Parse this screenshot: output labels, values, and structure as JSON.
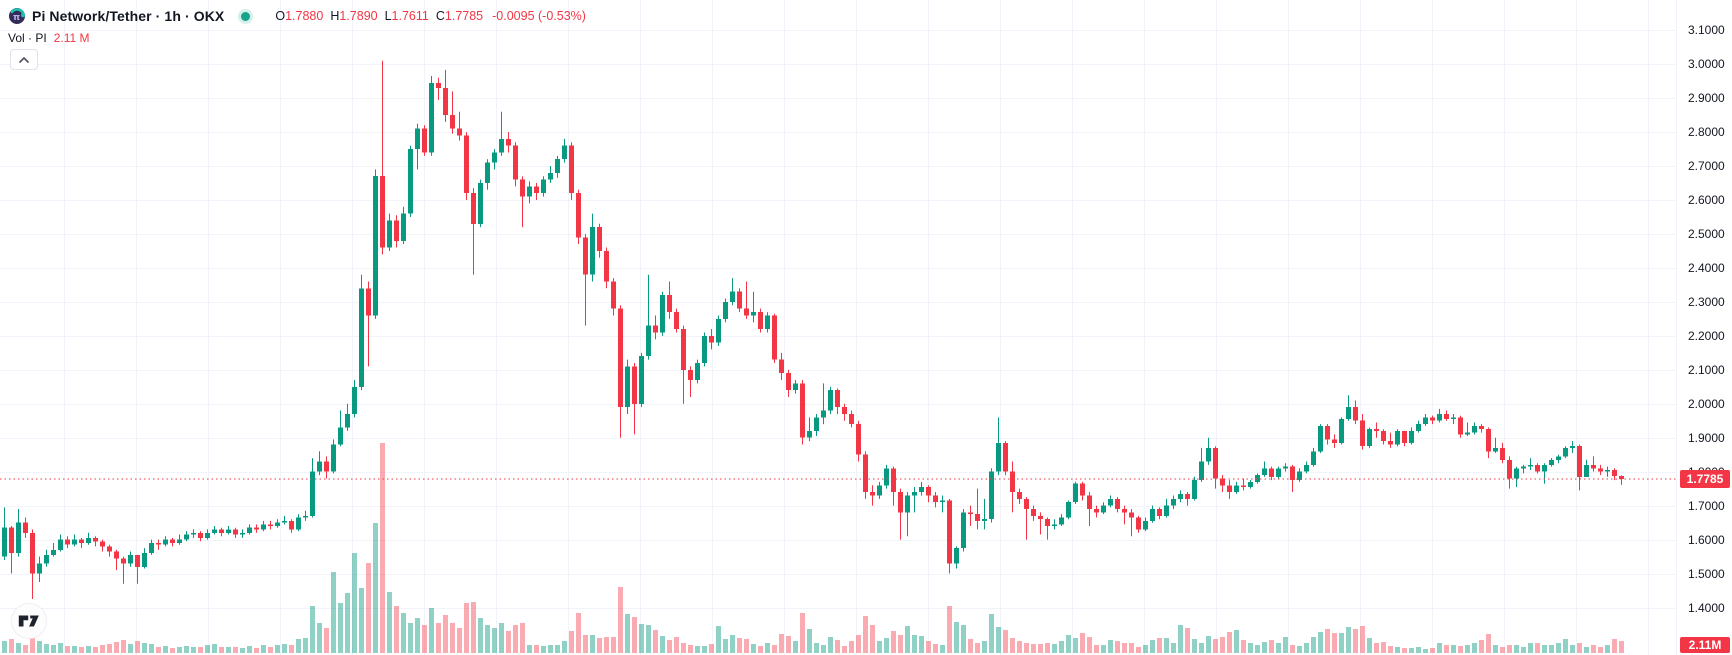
{
  "header": {
    "title": "Pi Network/Tether · 1h · OKX",
    "status_indicator": "market-open",
    "ohlc": [
      {
        "key": "O",
        "value": "1.7880"
      },
      {
        "key": "H",
        "value": "1.7890"
      },
      {
        "key": "L",
        "value": "1.7611"
      },
      {
        "key": "C",
        "value": "1.7785"
      }
    ],
    "change": "-0.0095 (-0.53%)",
    "volume_legend_label": "Vol · PI",
    "volume_legend_value": "2.11 M",
    "collapse_button": "chevron-up"
  },
  "colors": {
    "up": "#089981",
    "down": "#f23645",
    "vol_up": "rgba(8,153,129,0.45)",
    "vol_down": "rgba(242,54,69,0.42)",
    "grid": "#f0f3fa",
    "text": "#131722",
    "price_line": "#f23645"
  },
  "axis": {
    "y_ticks": [
      "3.1000",
      "3.0000",
      "2.9000",
      "2.8000",
      "2.7000",
      "2.6000",
      "2.5000",
      "2.4000",
      "2.3000",
      "2.2000",
      "2.1000",
      "2.0000",
      "1.9000",
      "1.8000",
      "1.7000",
      "1.6000",
      "1.5000",
      "1.4000"
    ],
    "y_tick_values": [
      3.1,
      3.0,
      2.9,
      2.8,
      2.7,
      2.6,
      2.5,
      2.4,
      2.3,
      2.2,
      2.1,
      2.0,
      1.9,
      1.8,
      1.7,
      1.6,
      1.5,
      1.4
    ],
    "current_price_label": "1.7785",
    "current_volume_label": "2.11M"
  },
  "chart_data": {
    "type": "candlestick",
    "title": "Pi Network/Tether · 1h · OKX",
    "interval": "1h",
    "legend_position": "top-left",
    "grid": true,
    "ylim": [
      1.36,
      3.18
    ],
    "price_line_value": 1.7785,
    "last_candle": {
      "open": 1.788,
      "high": 1.789,
      "low": 1.7611,
      "close": 1.7785,
      "volume_label": "2.11M"
    },
    "first_open": 1.55,
    "candles_format": [
      "close",
      "high",
      "low",
      "volume_rel"
    ],
    "candles": [
      [
        1.635,
        1.695,
        1.54,
        12
      ],
      [
        1.56,
        1.64,
        1.5,
        14
      ],
      [
        1.65,
        1.69,
        1.55,
        10
      ],
      [
        1.62,
        1.665,
        1.605,
        8
      ],
      [
        1.5,
        1.63,
        1.425,
        16
      ],
      [
        1.53,
        1.55,
        1.475,
        12
      ],
      [
        1.555,
        1.57,
        1.52,
        9
      ],
      [
        1.57,
        1.59,
        1.55,
        8
      ],
      [
        1.6,
        1.615,
        1.565,
        10
      ],
      [
        1.585,
        1.61,
        1.575,
        7
      ],
      [
        1.6,
        1.615,
        1.58,
        7
      ],
      [
        1.59,
        1.605,
        1.575,
        6
      ],
      [
        1.605,
        1.62,
        1.585,
        7
      ],
      [
        1.595,
        1.61,
        1.58,
        6
      ],
      [
        1.58,
        1.6,
        1.565,
        8
      ],
      [
        1.565,
        1.585,
        1.55,
        9
      ],
      [
        1.545,
        1.57,
        1.51,
        11
      ],
      [
        1.53,
        1.55,
        1.47,
        13
      ],
      [
        1.555,
        1.565,
        1.52,
        9
      ],
      [
        1.52,
        1.555,
        1.47,
        12
      ],
      [
        1.56,
        1.575,
        1.515,
        10
      ],
      [
        1.59,
        1.6,
        1.555,
        9
      ],
      [
        1.585,
        1.6,
        1.57,
        6
      ],
      [
        1.6,
        1.61,
        1.58,
        7
      ],
      [
        1.59,
        1.605,
        1.58,
        5
      ],
      [
        1.6,
        1.615,
        1.585,
        6
      ],
      [
        1.615,
        1.625,
        1.595,
        7
      ],
      [
        1.62,
        1.63,
        1.605,
        6
      ],
      [
        1.605,
        1.625,
        1.595,
        6
      ],
      [
        1.62,
        1.63,
        1.6,
        8
      ],
      [
        1.63,
        1.64,
        1.615,
        9
      ],
      [
        1.62,
        1.635,
        1.61,
        6
      ],
      [
        1.63,
        1.64,
        1.615,
        6
      ],
      [
        1.615,
        1.635,
        1.605,
        6
      ],
      [
        1.62,
        1.63,
        1.605,
        5
      ],
      [
        1.635,
        1.645,
        1.615,
        7
      ],
      [
        1.63,
        1.645,
        1.62,
        5
      ],
      [
        1.645,
        1.655,
        1.625,
        8
      ],
      [
        1.64,
        1.655,
        1.63,
        6
      ],
      [
        1.65,
        1.66,
        1.635,
        8
      ],
      [
        1.655,
        1.67,
        1.645,
        9
      ],
      [
        1.63,
        1.66,
        1.62,
        8
      ],
      [
        1.665,
        1.675,
        1.625,
        14
      ],
      [
        1.67,
        1.685,
        1.655,
        15
      ],
      [
        1.8,
        1.84,
        1.665,
        47
      ],
      [
        1.83,
        1.86,
        1.79,
        30
      ],
      [
        1.8,
        1.845,
        1.78,
        25
      ],
      [
        1.88,
        1.895,
        1.795,
        81
      ],
      [
        1.93,
        1.98,
        1.875,
        50
      ],
      [
        1.97,
        2.0,
        1.92,
        60
      ],
      [
        2.05,
        2.07,
        1.96,
        100
      ],
      [
        2.34,
        2.38,
        2.04,
        65
      ],
      [
        2.26,
        2.36,
        2.11,
        90
      ],
      [
        2.67,
        2.69,
        2.25,
        130
      ],
      [
        2.46,
        3.01,
        2.44,
        210
      ],
      [
        2.54,
        2.56,
        2.45,
        61
      ],
      [
        2.48,
        2.555,
        2.46,
        47
      ],
      [
        2.56,
        2.58,
        2.47,
        40
      ],
      [
        2.75,
        2.76,
        2.55,
        30
      ],
      [
        2.81,
        2.825,
        2.69,
        35
      ],
      [
        2.74,
        2.82,
        2.73,
        28
      ],
      [
        2.944,
        2.965,
        2.73,
        45
      ],
      [
        2.93,
        2.96,
        2.895,
        30
      ],
      [
        2.85,
        2.983,
        2.83,
        38
      ],
      [
        2.81,
        2.92,
        2.795,
        30
      ],
      [
        2.79,
        2.86,
        2.775,
        25
      ],
      [
        2.62,
        2.8,
        2.6,
        50
      ],
      [
        2.53,
        2.635,
        2.38,
        51
      ],
      [
        2.65,
        2.66,
        2.52,
        35
      ],
      [
        2.71,
        2.72,
        2.63,
        28
      ],
      [
        2.74,
        2.75,
        2.69,
        25
      ],
      [
        2.78,
        2.86,
        2.73,
        30
      ],
      [
        2.76,
        2.8,
        2.74,
        22
      ],
      [
        2.66,
        2.77,
        2.64,
        28
      ],
      [
        2.61,
        2.67,
        2.52,
        30
      ],
      [
        2.64,
        2.655,
        2.59,
        8
      ],
      [
        2.62,
        2.65,
        2.6,
        8
      ],
      [
        2.66,
        2.67,
        2.61,
        7
      ],
      [
        2.68,
        2.7,
        2.65,
        8
      ],
      [
        2.72,
        2.73,
        2.665,
        8
      ],
      [
        2.76,
        2.78,
        2.71,
        12
      ],
      [
        2.62,
        2.77,
        2.6,
        22
      ],
      [
        2.49,
        2.63,
        2.47,
        40
      ],
      [
        2.38,
        2.5,
        2.23,
        18
      ],
      [
        2.52,
        2.56,
        2.36,
        18
      ],
      [
        2.45,
        2.53,
        2.43,
        15
      ],
      [
        2.36,
        2.46,
        2.34,
        16
      ],
      [
        2.28,
        2.37,
        2.26,
        16
      ],
      [
        1.99,
        2.29,
        1.9,
        66
      ],
      [
        2.11,
        2.13,
        1.97,
        39
      ],
      [
        2.0,
        2.12,
        1.91,
        36
      ],
      [
        2.14,
        2.15,
        1.99,
        29
      ],
      [
        2.23,
        2.38,
        2.13,
        28
      ],
      [
        2.21,
        2.26,
        2.19,
        23
      ],
      [
        2.32,
        2.33,
        2.2,
        17
      ],
      [
        2.27,
        2.36,
        2.25,
        13
      ],
      [
        2.22,
        2.28,
        2.21,
        16
      ],
      [
        2.1,
        2.23,
        2.0,
        10
      ],
      [
        2.07,
        2.11,
        2.02,
        8
      ],
      [
        2.12,
        2.13,
        2.06,
        7
      ],
      [
        2.2,
        2.21,
        2.11,
        7
      ],
      [
        2.18,
        2.22,
        2.16,
        9
      ],
      [
        2.25,
        2.26,
        2.17,
        27
      ],
      [
        2.3,
        2.31,
        2.24,
        14
      ],
      [
        2.33,
        2.37,
        2.29,
        18
      ],
      [
        2.28,
        2.34,
        2.27,
        15
      ],
      [
        2.26,
        2.36,
        2.25,
        14
      ],
      [
        2.27,
        2.33,
        2.24,
        9
      ],
      [
        2.22,
        2.28,
        2.21,
        7
      ],
      [
        2.26,
        2.27,
        2.21,
        10
      ],
      [
        2.13,
        2.265,
        2.12,
        8
      ],
      [
        2.09,
        2.15,
        2.07,
        19
      ],
      [
        2.04,
        2.1,
        2.02,
        17
      ],
      [
        2.06,
        2.07,
        2.03,
        12
      ],
      [
        1.9,
        2.07,
        1.88,
        40
      ],
      [
        1.92,
        1.96,
        1.89,
        24
      ],
      [
        1.96,
        1.97,
        1.905,
        10
      ],
      [
        1.98,
        2.06,
        1.94,
        8
      ],
      [
        2.04,
        2.05,
        1.97,
        16
      ],
      [
        1.99,
        2.045,
        1.97,
        13
      ],
      [
        1.97,
        2.0,
        1.95,
        7
      ],
      [
        1.94,
        1.98,
        1.93,
        12
      ],
      [
        1.85,
        1.95,
        1.83,
        18
      ],
      [
        1.74,
        1.86,
        1.72,
        37
      ],
      [
        1.73,
        1.76,
        1.7,
        28
      ],
      [
        1.76,
        1.77,
        1.72,
        12
      ],
      [
        1.81,
        1.82,
        1.75,
        15
      ],
      [
        1.74,
        1.815,
        1.7,
        22
      ],
      [
        1.68,
        1.75,
        1.6,
        18
      ],
      [
        1.73,
        1.74,
        1.61,
        27
      ],
      [
        1.74,
        1.755,
        1.68,
        18
      ],
      [
        1.755,
        1.77,
        1.73,
        17
      ],
      [
        1.73,
        1.76,
        1.71,
        12
      ],
      [
        1.71,
        1.74,
        1.695,
        9
      ],
      [
        1.715,
        1.73,
        1.68,
        8
      ],
      [
        1.53,
        1.72,
        1.5,
        47
      ],
      [
        1.575,
        1.58,
        1.515,
        31
      ],
      [
        1.68,
        1.69,
        1.565,
        28
      ],
      [
        1.675,
        1.7,
        1.64,
        14
      ],
      [
        1.655,
        1.75,
        1.63,
        10
      ],
      [
        1.66,
        1.72,
        1.63,
        12
      ],
      [
        1.8,
        1.81,
        1.65,
        39
      ],
      [
        1.885,
        1.96,
        1.79,
        26
      ],
      [
        1.8,
        1.89,
        1.79,
        23
      ],
      [
        1.74,
        1.83,
        1.68,
        15
      ],
      [
        1.72,
        1.75,
        1.705,
        12
      ],
      [
        1.69,
        1.725,
        1.6,
        10
      ],
      [
        1.67,
        1.7,
        1.655,
        9
      ],
      [
        1.66,
        1.68,
        1.615,
        9
      ],
      [
        1.64,
        1.665,
        1.6,
        10
      ],
      [
        1.645,
        1.66,
        1.63,
        9
      ],
      [
        1.665,
        1.675,
        1.64,
        12
      ],
      [
        1.71,
        1.715,
        1.66,
        18
      ],
      [
        1.765,
        1.77,
        1.705,
        15
      ],
      [
        1.73,
        1.77,
        1.715,
        20
      ],
      [
        1.69,
        1.74,
        1.64,
        16
      ],
      [
        1.68,
        1.7,
        1.665,
        8
      ],
      [
        1.7,
        1.71,
        1.675,
        8
      ],
      [
        1.72,
        1.73,
        1.695,
        13
      ],
      [
        1.69,
        1.725,
        1.68,
        12
      ],
      [
        1.68,
        1.7,
        1.645,
        10
      ],
      [
        1.665,
        1.69,
        1.61,
        10
      ],
      [
        1.63,
        1.67,
        1.62,
        6
      ],
      [
        1.655,
        1.665,
        1.625,
        8
      ],
      [
        1.69,
        1.7,
        1.65,
        13
      ],
      [
        1.67,
        1.695,
        1.66,
        15
      ],
      [
        1.7,
        1.72,
        1.665,
        15
      ],
      [
        1.72,
        1.73,
        1.69,
        10
      ],
      [
        1.735,
        1.745,
        1.71,
        28
      ],
      [
        1.72,
        1.74,
        1.7,
        25
      ],
      [
        1.775,
        1.785,
        1.715,
        14
      ],
      [
        1.83,
        1.87,
        1.77,
        10
      ],
      [
        1.87,
        1.9,
        1.82,
        17
      ],
      [
        1.78,
        1.875,
        1.75,
        14
      ],
      [
        1.76,
        1.79,
        1.74,
        16
      ],
      [
        1.74,
        1.775,
        1.72,
        21
      ],
      [
        1.76,
        1.77,
        1.735,
        23
      ],
      [
        1.755,
        1.78,
        1.745,
        13
      ],
      [
        1.77,
        1.775,
        1.75,
        10
      ],
      [
        1.79,
        1.795,
        1.765,
        8
      ],
      [
        1.81,
        1.83,
        1.785,
        11
      ],
      [
        1.785,
        1.815,
        1.775,
        13
      ],
      [
        1.81,
        1.815,
        1.78,
        10
      ],
      [
        1.815,
        1.825,
        1.8,
        16
      ],
      [
        1.775,
        1.82,
        1.74,
        8
      ],
      [
        1.8,
        1.81,
        1.77,
        7
      ],
      [
        1.82,
        1.83,
        1.795,
        10
      ],
      [
        1.86,
        1.87,
        1.815,
        16
      ],
      [
        1.935,
        1.94,
        1.855,
        21
      ],
      [
        1.895,
        1.94,
        1.88,
        24
      ],
      [
        1.885,
        1.91,
        1.87,
        20
      ],
      [
        1.955,
        1.96,
        1.88,
        20
      ],
      [
        1.99,
        2.025,
        1.95,
        26
      ],
      [
        1.95,
        2.01,
        1.94,
        24
      ],
      [
        1.875,
        1.97,
        1.865,
        27
      ],
      [
        1.925,
        1.93,
        1.87,
        15
      ],
      [
        1.92,
        1.945,
        1.9,
        10
      ],
      [
        1.89,
        1.925,
        1.88,
        11
      ],
      [
        1.88,
        1.915,
        1.87,
        7
      ],
      [
        1.92,
        1.925,
        1.875,
        6
      ],
      [
        1.885,
        1.92,
        1.875,
        5
      ],
      [
        1.92,
        1.93,
        1.88,
        5
      ],
      [
        1.94,
        1.95,
        1.915,
        6
      ],
      [
        1.96,
        1.97,
        1.935,
        4
      ],
      [
        1.95,
        1.965,
        1.94,
        5
      ],
      [
        1.97,
        1.985,
        1.945,
        10
      ],
      [
        1.955,
        1.98,
        1.95,
        8
      ],
      [
        1.96,
        1.97,
        1.94,
        8
      ],
      [
        1.91,
        1.965,
        1.9,
        7
      ],
      [
        1.915,
        1.945,
        1.905,
        8
      ],
      [
        1.935,
        1.945,
        1.91,
        10
      ],
      [
        1.925,
        1.94,
        1.915,
        13
      ],
      [
        1.86,
        1.93,
        1.84,
        19
      ],
      [
        1.87,
        1.9,
        1.855,
        8
      ],
      [
        1.835,
        1.885,
        1.825,
        6
      ],
      [
        1.78,
        1.845,
        1.75,
        8
      ],
      [
        1.81,
        1.815,
        1.755,
        8
      ],
      [
        1.815,
        1.82,
        1.795,
        6
      ],
      [
        1.82,
        1.84,
        1.805,
        10
      ],
      [
        1.8,
        1.825,
        1.795,
        10
      ],
      [
        1.82,
        1.825,
        1.765,
        8
      ],
      [
        1.835,
        1.84,
        1.815,
        8
      ],
      [
        1.845,
        1.85,
        1.825,
        10
      ],
      [
        1.87,
        1.875,
        1.84,
        14
      ],
      [
        1.875,
        1.89,
        1.855,
        8
      ],
      [
        1.785,
        1.88,
        1.745,
        10
      ],
      [
        1.82,
        1.835,
        1.79,
        6
      ],
      [
        1.81,
        1.845,
        1.8,
        8
      ],
      [
        1.8,
        1.82,
        1.79,
        6
      ],
      [
        1.805,
        1.815,
        1.785,
        8
      ],
      [
        1.788,
        1.81,
        1.775,
        14
      ],
      [
        1.7785,
        1.789,
        1.7611,
        12
      ]
    ]
  }
}
